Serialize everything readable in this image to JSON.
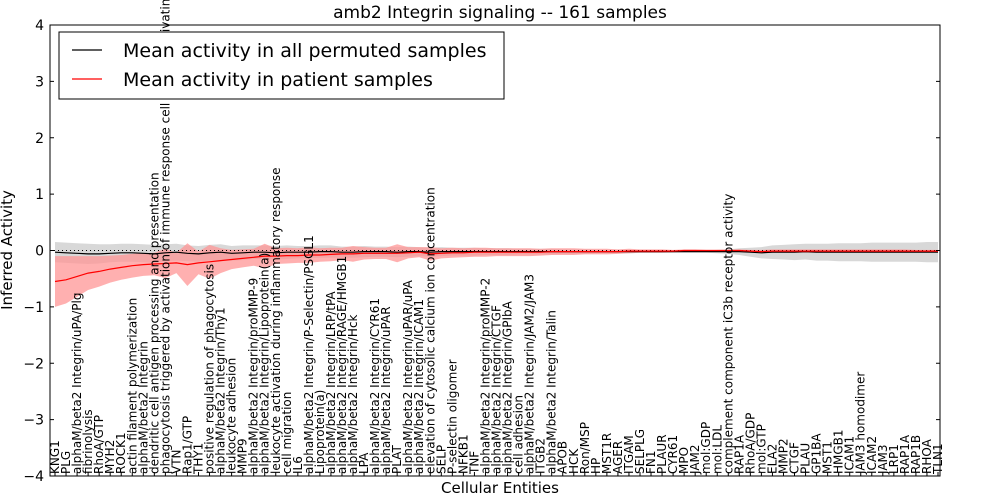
{
  "chart_data": {
    "type": "line",
    "title": "amb2 Integrin signaling -- 161 samples",
    "xlabel": "Cellular Entities",
    "ylabel": "Inferred Activity",
    "ylim": [
      -4,
      4
    ],
    "yticks": [
      "−4",
      "−3",
      "−2",
      "−1",
      "0",
      "1",
      "2",
      "3",
      "4"
    ],
    "reference_line": 0,
    "legend": {
      "placement": "top-left",
      "entries": [
        {
          "label": "Mean activity in all permuted samples",
          "color": "#000000"
        },
        {
          "label": "Mean activity in patient samples",
          "color": "#ff0000"
        }
      ]
    },
    "categories": [
      "KNG1",
      "PLG",
      "alphaM/beta2 Integrin/uPA/Plg",
      "fibrinolysis",
      "RhoA/GTP",
      "MYH2",
      "ROCK1",
      "actin filament polymerization",
      "alphaM/beta2 Integrin",
      "dendritic cell antigen processing and presentation",
      "phagocytosis triggered by activation of immune response cell surface activating receptor",
      "VTN",
      "Rap1/GTP",
      "THY1",
      "positive regulation of phagocytosis",
      "alphaM/beta2 Integrin/Thy1",
      "leukocyte adhesion",
      "MMP9",
      "alphaM/beta2 Integrin/proMMP-9",
      "alphaM/beta2 Integrin/Lipoprotein(a)",
      "leukocyte activation during inflammatory response",
      "cell migration",
      "IL6",
      "alphaM/beta2 Integrin/P-Selectin/PSGL1",
      "Lipoprotein(a)",
      "alphaM/beta2 Integrin/LRP/tPA",
      "alphaM/beta2 Integrin/RAGE/HMGB1",
      "alphaM/beta2 Integrin/Hck",
      "LPA",
      "alphaM/beta2 Integrin/CYR61",
      "alphaM/beta2 Integrin/uPAR",
      "PLAT",
      "alphaM/beta2 Integrin/uPAR/uPA",
      "alphaM/beta2 Integrin/ICAM1",
      "elevation of cytosolic calcium ion concentration",
      "SELP",
      "P-selectin oligomer",
      "NFKB1",
      "TNF",
      "alphaM/beta2 Integrin/proMMP-2",
      "alphaM/beta2 Integrin/CTGF",
      "alphaM/beta2 Integrin/GPIbA",
      "cell adhesion",
      "alphaM/beta2 Integrin/JAM2/JAM3",
      "ITGB2",
      "alphaM/beta2 Integrin/Talin",
      "APOB",
      "HCK",
      "Ron/MSP",
      "HP",
      "MST1R",
      "AGER",
      "ITGAM",
      "SELPLG",
      "FN1",
      "PLAUR",
      "CYR61",
      "MPO",
      "JAM2",
      "mol:GDP",
      "mol:LDL",
      "complement component iC3b receptor activity",
      "RAP1A",
      "RhoA/GDP",
      "mol:GTP",
      "ELA2",
      "MMP2",
      "CTGF",
      "PLAU",
      "GP1BA",
      "MST1",
      "HMGB1",
      "ICAM1",
      "JAM3 homodimer",
      "ICAM2",
      "JAM3",
      "LRP1",
      "RAP1A",
      "RAP1B",
      "RHOA",
      "TLN1"
    ],
    "series": [
      {
        "name": "Mean activity in all permuted samples",
        "color": "#000000",
        "band_color": "#c8c8c8",
        "values": [
          -0.03,
          -0.04,
          -0.05,
          -0.06,
          -0.06,
          -0.05,
          -0.04,
          -0.04,
          -0.05,
          -0.06,
          -0.04,
          -0.03,
          -0.05,
          -0.06,
          -0.04,
          -0.03,
          -0.05,
          -0.04,
          -0.03,
          -0.03,
          -0.04,
          -0.03,
          -0.03,
          -0.03,
          -0.02,
          -0.02,
          -0.03,
          -0.03,
          -0.02,
          -0.02,
          -0.02,
          -0.03,
          -0.02,
          -0.02,
          -0.03,
          -0.02,
          -0.02,
          -0.02,
          -0.02,
          -0.02,
          -0.02,
          -0.02,
          -0.02,
          -0.02,
          -0.02,
          -0.02,
          -0.02,
          -0.02,
          -0.02,
          -0.02,
          -0.02,
          -0.02,
          -0.02,
          -0.02,
          -0.02,
          -0.02,
          -0.02,
          -0.02,
          -0.02,
          -0.02,
          -0.02,
          -0.02,
          -0.02,
          -0.03,
          -0.04,
          -0.03,
          -0.03,
          -0.03,
          -0.02,
          -0.03,
          -0.03,
          -0.03,
          -0.03,
          -0.03,
          -0.03,
          -0.03,
          -0.03,
          -0.03,
          -0.03,
          -0.03,
          -0.03
        ],
        "band": [
          0.18,
          0.18,
          0.18,
          0.18,
          0.17,
          0.16,
          0.16,
          0.16,
          0.16,
          0.16,
          0.15,
          0.15,
          0.14,
          0.14,
          0.14,
          0.14,
          0.13,
          0.13,
          0.12,
          0.12,
          0.12,
          0.12,
          0.11,
          0.11,
          0.11,
          0.11,
          0.1,
          0.1,
          0.1,
          0.09,
          0.09,
          0.09,
          0.09,
          0.08,
          0.08,
          0.08,
          0.07,
          0.07,
          0.07,
          0.06,
          0.06,
          0.06,
          0.05,
          0.05,
          0.05,
          0.05,
          0.04,
          0.04,
          0.04,
          0.03,
          0.03,
          0.03,
          0.03,
          0.02,
          0.02,
          0.02,
          0.02,
          0.02,
          0.02,
          0.02,
          0.03,
          0.04,
          0.06,
          0.08,
          0.1,
          0.12,
          0.13,
          0.14,
          0.14,
          0.15,
          0.15,
          0.16,
          0.16,
          0.16,
          0.17,
          0.17,
          0.17,
          0.17,
          0.17,
          0.18,
          0.18
        ]
      },
      {
        "name": "Mean activity in patient samples",
        "color": "#ff0000",
        "band_color": "#ff9696",
        "values": [
          -0.55,
          -0.52,
          -0.46,
          -0.4,
          -0.37,
          -0.33,
          -0.3,
          -0.27,
          -0.25,
          -0.24,
          -0.23,
          -0.22,
          -0.25,
          -0.22,
          -0.2,
          -0.18,
          -0.16,
          -0.14,
          -0.12,
          -0.1,
          -0.1,
          -0.09,
          -0.09,
          -0.08,
          -0.08,
          -0.07,
          -0.06,
          -0.06,
          -0.05,
          -0.05,
          -0.05,
          -0.05,
          -0.04,
          -0.03,
          -0.06,
          -0.05,
          -0.04,
          -0.04,
          -0.03,
          -0.03,
          -0.03,
          -0.03,
          -0.03,
          -0.03,
          -0.03,
          -0.02,
          -0.02,
          -0.02,
          -0.02,
          -0.02,
          -0.02,
          -0.02,
          -0.01,
          -0.01,
          -0.01,
          -0.01,
          -0.01,
          0.0,
          0.0,
          0.0,
          0.0,
          0.0,
          0.0,
          -0.01,
          -0.02,
          -0.01,
          -0.01,
          -0.01,
          -0.01,
          -0.01,
          -0.01,
          -0.01,
          -0.01,
          -0.01,
          -0.01,
          -0.01,
          -0.01,
          -0.01,
          -0.01,
          -0.01,
          -0.01
        ],
        "band": [
          0.45,
          0.42,
          0.36,
          0.3,
          0.27,
          0.24,
          0.22,
          0.21,
          0.2,
          0.2,
          0.26,
          0.18,
          0.38,
          0.2,
          0.3,
          0.22,
          0.17,
          0.16,
          0.15,
          0.22,
          0.14,
          0.14,
          0.13,
          0.14,
          0.12,
          0.12,
          0.11,
          0.14,
          0.11,
          0.1,
          0.1,
          0.16,
          0.1,
          0.09,
          0.12,
          0.09,
          0.09,
          0.08,
          0.08,
          0.08,
          0.07,
          0.07,
          0.07,
          0.07,
          0.06,
          0.06,
          0.06,
          0.06,
          0.05,
          0.05,
          0.05,
          0.04,
          0.04,
          0.03,
          0.03,
          0.03,
          0.02,
          0.02,
          0.02,
          0.01,
          0.01,
          0.01,
          0.02,
          0.02,
          0.03,
          0.03,
          0.03,
          0.03,
          0.03,
          0.03,
          0.03,
          0.03,
          0.03,
          0.03,
          0.03,
          0.03,
          0.03,
          0.03,
          0.02,
          0.02,
          0.02
        ]
      }
    ]
  }
}
